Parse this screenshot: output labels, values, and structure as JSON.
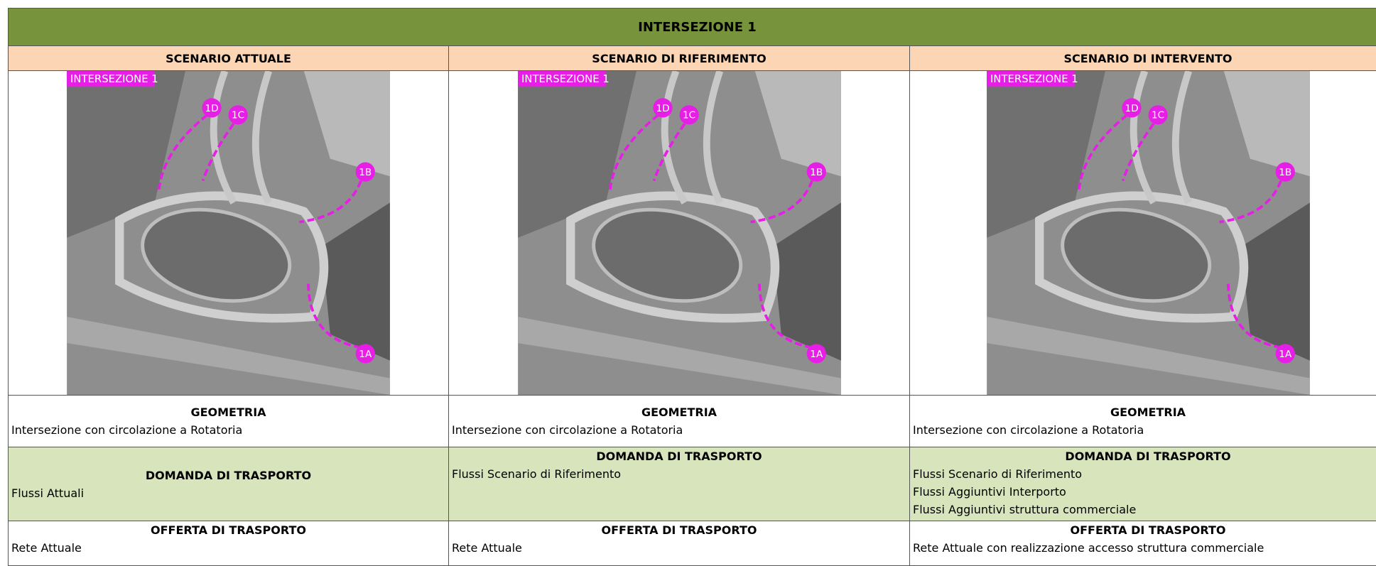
{
  "title": "INTERSEZIONE 1",
  "columns": [
    {
      "scenario": "SCENARIO ATTUALE",
      "image": {
        "tag": "INTERSEZIONE 1",
        "points": [
          "1D",
          "1C",
          "1B",
          "1A"
        ]
      },
      "geometria": {
        "heading": "GEOMETRIA",
        "lines": [
          "Intersezione con circolazione a Rotatoria"
        ]
      },
      "domanda": {
        "heading": "DOMANDA DI TRASPORTO",
        "lines": [
          "Flussi Attuali"
        ]
      },
      "offerta": {
        "heading": "OFFERTA DI TRASPORTO",
        "lines": [
          "Rete Attuale"
        ]
      }
    },
    {
      "scenario": "SCENARIO DI RIFERIMENTO",
      "image": {
        "tag": "INTERSEZIONE 1",
        "points": [
          "1D",
          "1C",
          "1B",
          "1A"
        ]
      },
      "geometria": {
        "heading": "GEOMETRIA",
        "lines": [
          "Intersezione con circolazione a Rotatoria"
        ]
      },
      "domanda": {
        "heading": "DOMANDA DI TRASPORTO",
        "lines": [
          "Flussi Scenario di Riferimento"
        ]
      },
      "offerta": {
        "heading": "OFFERTA DI TRASPORTO",
        "lines": [
          "Rete Attuale"
        ]
      }
    },
    {
      "scenario": "SCENARIO DI INTERVENTO",
      "image": {
        "tag": "INTERSEZIONE 1",
        "points": [
          "1D",
          "1C",
          "1B",
          "1A"
        ]
      },
      "geometria": {
        "heading": "GEOMETRIA",
        "lines": [
          "Intersezione con circolazione a Rotatoria"
        ]
      },
      "domanda": {
        "heading": "DOMANDA DI TRASPORTO",
        "lines": [
          "Flussi Scenario di Riferimento",
          "Flussi Aggiuntivi Interporto",
          "Flussi Aggiuntivi struttura commerciale"
        ]
      },
      "offerta": {
        "heading": "OFFERTA DI TRASPORTO",
        "lines": [
          "Rete Attuale con realizzazione accesso struttura commerciale"
        ]
      }
    }
  ]
}
